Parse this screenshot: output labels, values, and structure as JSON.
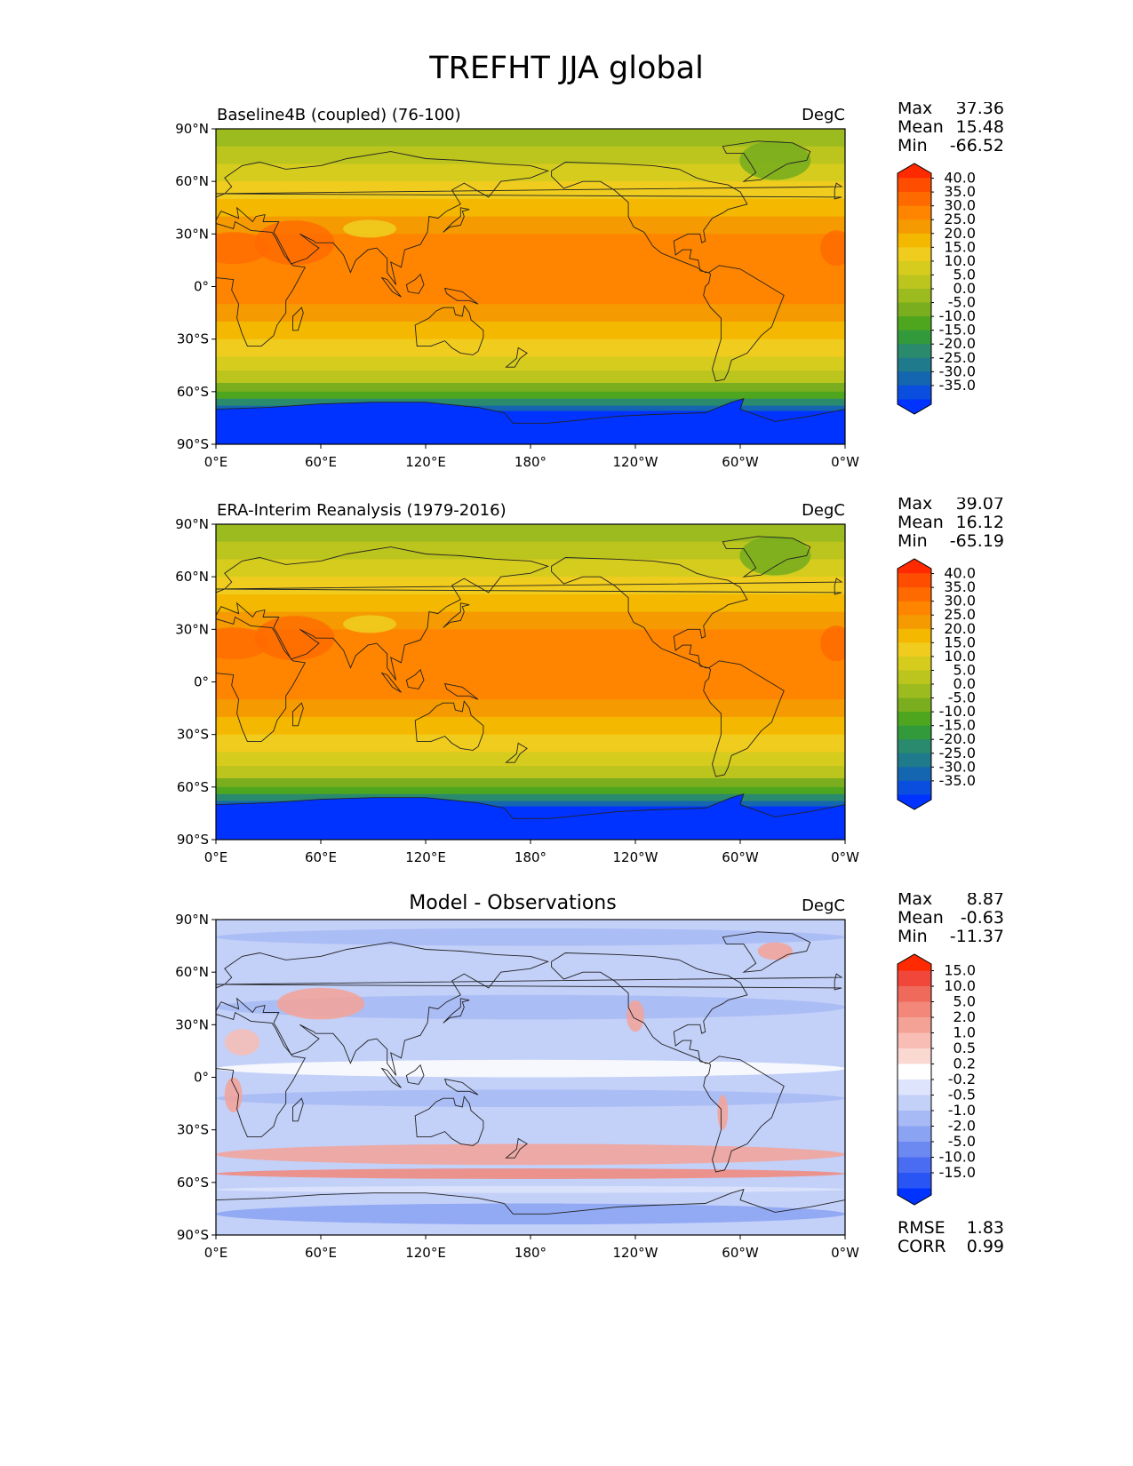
{
  "title": "TREFHT JJA global",
  "axes": {
    "lat_ticks": [
      "90°N",
      "60°N",
      "30°N",
      "0°",
      "30°S",
      "60°S",
      "90°S"
    ],
    "lon_ticks": [
      "0°E",
      "60°E",
      "120°E",
      "180°",
      "120°W",
      "60°W",
      "0°W"
    ]
  },
  "panels": [
    {
      "id": "model",
      "left_title": "Baseline4B (coupled) (76-100)",
      "center_title": "",
      "units": "DegC",
      "stats": [
        {
          "label": "Max",
          "value": "37.36"
        },
        {
          "label": "Mean",
          "value": "15.48"
        },
        {
          "label": "Min",
          "value": "-66.52"
        }
      ],
      "colorbar": {
        "levels": [
          "40.0",
          "35.0",
          "30.0",
          "25.0",
          "20.0",
          "15.0",
          "10.0",
          "5.0",
          "0.0",
          "-5.0",
          "-10.0",
          "-15.0",
          "-20.0",
          "-25.0",
          "-30.0",
          "-35.0"
        ],
        "colors": [
          "#ff2a00",
          "#ff4d00",
          "#ff6a00",
          "#ff8400",
          "#f59a00",
          "#f5b800",
          "#f0cc1e",
          "#d6cc1e",
          "#bcc41e",
          "#9cbb1e",
          "#7aae1e",
          "#4ea61e",
          "#339a3c",
          "#2a8a6e",
          "#1f7a8c",
          "#1466b0",
          "#0a4ee0",
          "#0033ff"
        ]
      },
      "extra_stats": []
    },
    {
      "id": "obs",
      "left_title": "ERA-Interim Reanalysis (1979-2016)",
      "center_title": "",
      "units": "DegC",
      "stats": [
        {
          "label": "Max",
          "value": "39.07"
        },
        {
          "label": "Mean",
          "value": "16.12"
        },
        {
          "label": "Min",
          "value": "-65.19"
        }
      ],
      "colorbar": {
        "levels": [
          "40.0",
          "35.0",
          "30.0",
          "25.0",
          "20.0",
          "15.0",
          "10.0",
          "5.0",
          "0.0",
          "-5.0",
          "-10.0",
          "-15.0",
          "-20.0",
          "-25.0",
          "-30.0",
          "-35.0"
        ],
        "colors": [
          "#ff2a00",
          "#ff4d00",
          "#ff6a00",
          "#ff8400",
          "#f59a00",
          "#f5b800",
          "#f0cc1e",
          "#d6cc1e",
          "#bcc41e",
          "#9cbb1e",
          "#7aae1e",
          "#4ea61e",
          "#339a3c",
          "#2a8a6e",
          "#1f7a8c",
          "#1466b0",
          "#0a4ee0",
          "#0033ff"
        ]
      },
      "extra_stats": []
    },
    {
      "id": "diff",
      "left_title": "",
      "center_title": "Model - Observations",
      "units": "DegC",
      "stats": [
        {
          "label": "Max",
          "value": "8.87"
        },
        {
          "label": "Mean",
          "value": "-0.63"
        },
        {
          "label": "Min",
          "value": "-11.37"
        }
      ],
      "colorbar": {
        "levels": [
          "15.0",
          "10.0",
          "5.0",
          "2.0",
          "1.0",
          "0.5",
          "0.2",
          "-0.2",
          "-0.5",
          "-1.0",
          "-2.0",
          "-5.0",
          "-10.0",
          "-15.0"
        ],
        "colors": [
          "#ff2a00",
          "#f0473a",
          "#ef6a5a",
          "#f2877a",
          "#f5a296",
          "#f8bdb4",
          "#fbd9d3",
          "#ffffff",
          "#dde4fb",
          "#c3d0f8",
          "#a7baf5",
          "#8aa3f2",
          "#6b89f0",
          "#4a6cf2",
          "#2a55f5",
          "#0033ff"
        ]
      },
      "extra_stats": [
        {
          "label": "RMSE",
          "value": "1.83"
        },
        {
          "label": "CORR",
          "value": "0.99"
        }
      ]
    }
  ]
}
